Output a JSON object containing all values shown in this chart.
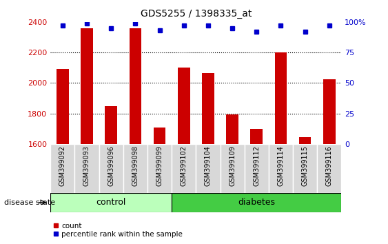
{
  "title": "GDS5255 / 1398335_at",
  "samples": [
    "GSM399092",
    "GSM399093",
    "GSM399096",
    "GSM399098",
    "GSM399099",
    "GSM399102",
    "GSM399104",
    "GSM399109",
    "GSM399112",
    "GSM399114",
    "GSM399115",
    "GSM399116"
  ],
  "counts": [
    2090,
    2360,
    1850,
    2360,
    1710,
    2100,
    2065,
    1795,
    1700,
    2200,
    1645,
    2025
  ],
  "percentile_ranks": [
    97,
    99,
    95,
    99,
    93,
    97,
    97,
    95,
    92,
    97,
    92,
    97
  ],
  "ylim_left": [
    1600,
    2400
  ],
  "ylim_right": [
    0,
    100
  ],
  "yticks_left": [
    1600,
    1800,
    2000,
    2200,
    2400
  ],
  "yticks_right": [
    0,
    25,
    50,
    75,
    100
  ],
  "bar_color": "#cc0000",
  "dot_color": "#0000cc",
  "n_control": 5,
  "n_diabetes": 7,
  "control_label": "control",
  "diabetes_label": "diabetes",
  "group_label": "disease state",
  "control_color": "#bbffbb",
  "diabetes_color": "#44cc44",
  "legend_count_label": "count",
  "legend_pct_label": "percentile rank within the sample",
  "bar_width": 0.5,
  "cell_bg_color": "#d8d8d8",
  "cell_edge_color": "#ffffff"
}
